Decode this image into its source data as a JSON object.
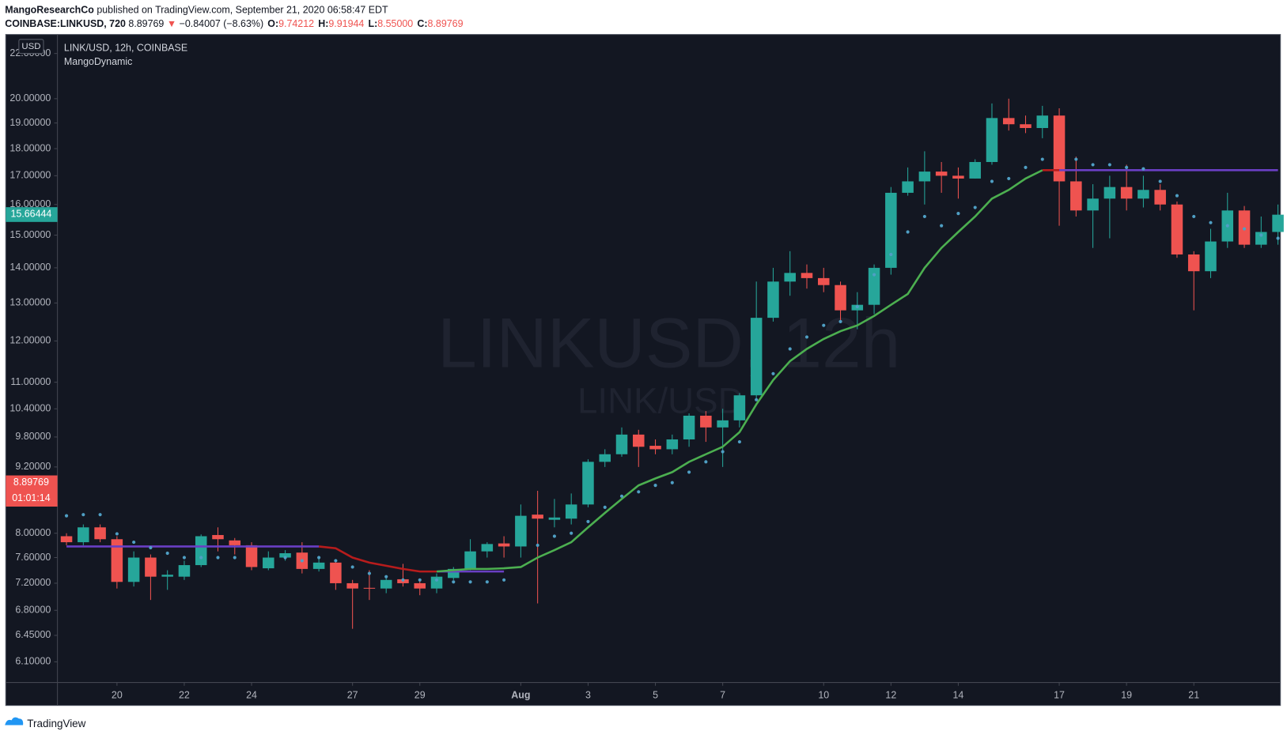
{
  "header": {
    "publisher": "MangoResearchCo",
    "published": "published on TradingView.com, September 21, 2020 06:58:47 EDT",
    "symbol": "COINBASE:LINKUSD, 720",
    "last": "8.89769",
    "arrow": "▼",
    "change": "−0.84007 (−8.63%)",
    "ohlc": [
      {
        "key": "O:",
        "value": "9.74212"
      },
      {
        "key": "H:",
        "value": "9.91944"
      },
      {
        "key": "L:",
        "value": "8.55000"
      },
      {
        "key": "C:",
        "value": "8.89769"
      }
    ]
  },
  "chart_data": {
    "type": "candlestick",
    "title": "LINK/USD, 12h, COINBASE",
    "indicator": "MangoDynamic",
    "watermark": "LINKUSD, 12h",
    "watermark_sub": "LINK/USD",
    "currency": "USD",
    "categories": [
      null,
      null,
      null,
      "20",
      null,
      null,
      null,
      "22",
      null,
      null,
      null,
      "24",
      null,
      null,
      null,
      null,
      null,
      "27",
      null,
      null,
      null,
      "29",
      null,
      null,
      null,
      null,
      null,
      "Aug",
      null,
      null,
      null,
      "3",
      null,
      null,
      null,
      "5",
      null,
      null,
      null,
      "7",
      null,
      null,
      null,
      null,
      null,
      "10",
      null,
      null,
      null,
      "12",
      null,
      null,
      null,
      "14",
      null,
      null,
      null,
      null,
      null,
      "17",
      null,
      null,
      null,
      "19",
      null,
      null,
      null,
      "21",
      null,
      null,
      null,
      null,
      null
    ],
    "open": [
      7.95,
      7.85,
      8.1,
      7.9,
      7.22,
      7.6,
      7.3,
      7.3,
      7.48,
      7.97,
      7.88,
      7.8,
      7.43,
      7.6,
      7.68,
      7.42,
      7.52,
      7.2,
      7.13,
      7.12,
      7.26,
      7.2,
      7.12,
      7.28,
      7.42,
      7.7,
      7.83,
      7.78,
      8.32,
      8.23,
      8.25,
      8.5,
      9.3,
      9.45,
      9.85,
      9.62,
      9.55,
      9.75,
      10.25,
      10.0,
      10.15,
      10.7,
      12.6,
      13.6,
      13.85,
      13.7,
      13.5,
      12.8,
      12.95,
      14.0,
      16.4,
      16.8,
      17.15,
      17.0,
      16.9,
      17.5,
      19.2,
      18.95,
      18.8,
      19.3,
      16.8,
      15.8,
      16.2,
      16.6,
      16.2,
      16.5,
      16.0,
      14.4,
      13.9,
      14.8,
      15.8,
      14.7,
      15.1
    ],
    "high": [
      8.0,
      8.15,
      8.15,
      7.95,
      7.7,
      7.65,
      7.4,
      7.55,
      7.98,
      8.1,
      7.92,
      7.85,
      7.7,
      7.72,
      7.85,
      7.58,
      7.55,
      7.25,
      7.4,
      7.3,
      7.5,
      7.25,
      7.35,
      7.45,
      7.9,
      7.85,
      7.95,
      8.5,
      8.75,
      8.6,
      8.7,
      9.35,
      9.55,
      10.0,
      9.95,
      9.75,
      9.85,
      10.3,
      10.35,
      10.4,
      10.75,
      13.6,
      14.0,
      14.5,
      14.1,
      14.0,
      13.6,
      13.3,
      14.1,
      16.6,
      17.3,
      17.9,
      17.5,
      17.3,
      17.6,
      19.8,
      20.0,
      19.3,
      19.7,
      19.6,
      17.7,
      16.7,
      17.0,
      17.4,
      17.0,
      16.7,
      16.1,
      14.5,
      15.2,
      16.4,
      15.95,
      15.6,
      16.0
    ],
    "low": [
      7.8,
      7.8,
      7.85,
      7.12,
      7.15,
      6.95,
      7.1,
      7.25,
      7.45,
      7.7,
      7.65,
      7.4,
      7.4,
      7.55,
      7.35,
      7.38,
      7.1,
      6.54,
      6.95,
      7.05,
      7.15,
      7.02,
      7.05,
      7.25,
      7.4,
      7.6,
      7.6,
      7.6,
      6.9,
      8.1,
      8.15,
      8.45,
      9.2,
      9.4,
      9.2,
      9.45,
      9.45,
      9.6,
      9.7,
      9.2,
      10.0,
      10.6,
      12.5,
      13.2,
      13.4,
      13.3,
      12.5,
      12.3,
      12.7,
      13.8,
      16.3,
      16.0,
      16.4,
      16.2,
      16.9,
      17.4,
      18.7,
      18.6,
      18.4,
      15.3,
      15.6,
      14.6,
      14.9,
      15.8,
      15.9,
      15.8,
      14.3,
      12.8,
      13.7,
      14.6,
      14.6,
      14.6,
      14.7
    ],
    "close": [
      7.85,
      8.1,
      7.9,
      7.22,
      7.6,
      7.3,
      7.33,
      7.48,
      7.95,
      7.9,
      7.8,
      7.45,
      7.6,
      7.67,
      7.42,
      7.52,
      7.2,
      7.12,
      7.12,
      7.25,
      7.2,
      7.12,
      7.3,
      7.42,
      7.7,
      7.82,
      7.78,
      8.3,
      8.25,
      8.27,
      8.5,
      9.3,
      9.45,
      9.85,
      9.6,
      9.55,
      9.75,
      10.25,
      10.0,
      10.15,
      10.7,
      12.6,
      13.6,
      13.85,
      13.7,
      13.5,
      12.8,
      12.95,
      14.0,
      16.4,
      16.8,
      17.15,
      17.0,
      16.9,
      17.5,
      19.2,
      18.95,
      18.8,
      19.3,
      16.8,
      15.8,
      16.2,
      16.6,
      16.2,
      16.5,
      16.0,
      14.4,
      13.9,
      14.8,
      15.8,
      14.7,
      15.1,
      15.66
    ],
    "up_color": "#26a69a",
    "down_color": "#ef5350",
    "log_scale": true,
    "grid": false,
    "ylim": [
      5.84,
      22.9
    ],
    "yticks": [
      {
        "value": 6.1,
        "label": "6.10000"
      },
      {
        "value": 6.45,
        "label": "6.45000"
      },
      {
        "value": 6.8,
        "label": "6.80000"
      },
      {
        "value": 7.2,
        "label": "7.20000"
      },
      {
        "value": 7.6,
        "label": "7.60000"
      },
      {
        "value": 8,
        "label": "8.00000"
      },
      {
        "value": 9.2,
        "label": "9.20000"
      },
      {
        "value": 9.8,
        "label": "9.80000"
      },
      {
        "value": 10.4,
        "label": "10.40000"
      },
      {
        "value": 11,
        "label": "11.00000"
      },
      {
        "value": 12,
        "label": "12.00000"
      },
      {
        "value": 13,
        "label": "13.00000"
      },
      {
        "value": 14,
        "label": "14.00000"
      },
      {
        "value": 15,
        "label": "15.00000"
      },
      {
        "value": 16,
        "label": "16.00000"
      },
      {
        "value": 17,
        "label": "17.00000"
      },
      {
        "value": 18,
        "label": "18.00000"
      },
      {
        "value": 19,
        "label": "19.00000"
      },
      {
        "value": 20,
        "label": "20.00000"
      },
      {
        "value": 22,
        "label": "22.00000"
      }
    ],
    "lines": [
      {
        "color": "#6a3fc4",
        "values": [
          7.78,
          7.78,
          7.78,
          7.78,
          7.78,
          7.78,
          7.78,
          7.78,
          7.78,
          7.78,
          7.78,
          7.78,
          7.78,
          7.78,
          7.78,
          7.78,
          null,
          null,
          null,
          null,
          null,
          null,
          7.38,
          7.38,
          7.38,
          7.38,
          7.38,
          null,
          null,
          null,
          null,
          null,
          null,
          null,
          null,
          null,
          null,
          null,
          null,
          null,
          null,
          null,
          null,
          null,
          null,
          null,
          null,
          null,
          null,
          null,
          null,
          null,
          null,
          null,
          null,
          null,
          null,
          null,
          null,
          17.2,
          17.2,
          17.2,
          17.2,
          17.2,
          17.2,
          17.2,
          17.2,
          17.2,
          17.2,
          17.2,
          17.2,
          17.2,
          17.2
        ]
      },
      {
        "color": "#b71c1c",
        "values": [
          null,
          null,
          null,
          null,
          null,
          null,
          null,
          null,
          null,
          null,
          null,
          null,
          null,
          null,
          null,
          7.78,
          7.75,
          7.6,
          7.52,
          7.47,
          7.42,
          7.38,
          7.38,
          null,
          null,
          null,
          null,
          null,
          null,
          null,
          null,
          null,
          null,
          null,
          null,
          null,
          null,
          null,
          null,
          null,
          null,
          null,
          null,
          null,
          null,
          null,
          null,
          null,
          null,
          null,
          null,
          null,
          null,
          null,
          null,
          null,
          null,
          null,
          17.2,
          17.2,
          null,
          null,
          null,
          null,
          null,
          null,
          null,
          null,
          null,
          null,
          null,
          null,
          null
        ]
      },
      {
        "color": "#4caf50",
        "values": [
          null,
          null,
          null,
          null,
          null,
          null,
          null,
          null,
          null,
          null,
          null,
          null,
          null,
          null,
          null,
          null,
          null,
          null,
          null,
          null,
          null,
          null,
          7.38,
          7.4,
          7.42,
          7.42,
          7.43,
          7.45,
          7.6,
          7.72,
          7.85,
          8.1,
          8.35,
          8.6,
          8.85,
          8.98,
          9.1,
          9.3,
          9.45,
          9.6,
          9.9,
          10.5,
          11.05,
          11.5,
          11.8,
          12.05,
          12.25,
          12.4,
          12.65,
          12.95,
          13.25,
          14.0,
          14.6,
          15.1,
          15.6,
          16.2,
          16.5,
          16.9,
          17.2,
          null,
          null,
          null,
          null,
          null,
          null,
          null,
          null,
          null,
          null,
          null,
          null,
          null,
          null
        ]
      }
    ],
    "dots": {
      "color": "#4f9fc4",
      "values": [
        8.3,
        8.32,
        8.32,
        7.99,
        7.85,
        7.76,
        7.67,
        7.6,
        7.6,
        7.6,
        7.6,
        null,
        null,
        7.6,
        7.55,
        7.6,
        7.55,
        7.45,
        7.35,
        7.3,
        7.25,
        7.25,
        7.25,
        7.22,
        7.22,
        7.22,
        7.25,
        null,
        7.8,
        7.95,
        8.0,
        8.2,
        8.45,
        8.65,
        8.73,
        8.85,
        8.9,
        9.1,
        9.3,
        9.5,
        9.7,
        10.6,
        11.2,
        11.8,
        12.1,
        12.4,
        12.5,
        12.9,
        13.8,
        14.4,
        15.1,
        15.6,
        15.3,
        15.7,
        15.9,
        16.8,
        16.9,
        17.3,
        17.6,
        null,
        17.6,
        17.4,
        17.4,
        17.3,
        17.25,
        16.8,
        16.3,
        15.6,
        15.4,
        15.3,
        15.2,
        15.0,
        14.9
      ]
    },
    "price_labels": [
      {
        "value": 15.66444,
        "label": "15.66444",
        "color": "#26a69a"
      },
      {
        "value": 8.89769,
        "label": "8.89769",
        "color": "#ef5350",
        "countdown": "01:01:14"
      }
    ]
  },
  "footer": {
    "brand": "TradingView"
  }
}
